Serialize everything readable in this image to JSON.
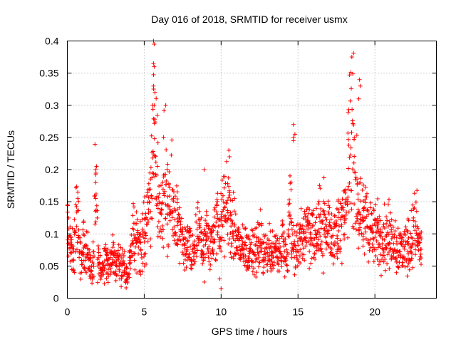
{
  "chart_data": {
    "type": "scatter",
    "title": "Day 016 of 2018, SRMTID for receiver usmx",
    "xlabel": "GPS time / hours",
    "ylabel": "SRMTID / TECUs",
    "xlim": [
      0,
      24.0
    ],
    "ylim": [
      0,
      0.4
    ],
    "xticks": [
      0,
      5,
      10,
      15,
      20
    ],
    "xtick_labels": [
      "0",
      "5",
      "10",
      "15",
      "20"
    ],
    "yticks": [
      0,
      0.05,
      0.1,
      0.15,
      0.2,
      0.25,
      0.3,
      0.35,
      0.4
    ],
    "ytick_labels": [
      "0",
      "0.05",
      "0.1",
      "0.15",
      "0.2",
      "0.25",
      "0.3",
      "0.35",
      "0.4"
    ],
    "grid": true,
    "marker": "+",
    "color": "#ff0000",
    "series": [
      {
        "name": "SRMTID",
        "x_step": 0.1,
        "x_start": 0,
        "values": [
          0.12,
          0.1,
          0.08,
          0.07,
          0.06,
          0.09,
          0.13,
          0.11,
          0.08,
          0.06,
          0.07,
          0.09,
          0.08,
          0.07,
          0.06,
          0.05,
          0.04,
          0.06,
          0.15,
          0.13,
          0.06,
          0.05,
          0.04,
          0.05,
          0.06,
          0.07,
          0.06,
          0.05,
          0.05,
          0.06,
          0.07,
          0.06,
          0.05,
          0.06,
          0.05,
          0.05,
          0.06,
          0.05,
          0.04,
          0.04,
          0.05,
          0.07,
          0.09,
          0.1,
          0.08,
          0.09,
          0.1,
          0.09,
          0.08,
          0.09,
          0.1,
          0.11,
          0.13,
          0.15,
          0.17,
          0.2,
          0.22,
          0.21,
          0.2,
          0.16,
          0.14,
          0.13,
          0.17,
          0.19,
          0.16,
          0.14,
          0.13,
          0.14,
          0.15,
          0.14,
          0.13,
          0.12,
          0.11,
          0.1,
          0.09,
          0.08,
          0.07,
          0.08,
          0.09,
          0.08,
          0.07,
          0.06,
          0.07,
          0.08,
          0.09,
          0.1,
          0.09,
          0.09,
          0.08,
          0.09,
          0.09,
          0.1,
          0.08,
          0.08,
          0.09,
          0.1,
          0.1,
          0.11,
          0.12,
          0.11,
          0.11,
          0.12,
          0.13,
          0.14,
          0.15,
          0.14,
          0.12,
          0.11,
          0.1,
          0.1,
          0.09,
          0.09,
          0.08,
          0.08,
          0.07,
          0.08,
          0.08,
          0.07,
          0.07,
          0.08,
          0.08,
          0.08,
          0.07,
          0.07,
          0.08,
          0.08,
          0.09,
          0.07,
          0.08,
          0.07,
          0.07,
          0.08,
          0.08,
          0.07,
          0.08,
          0.08,
          0.08,
          0.07,
          0.07,
          0.08,
          0.09,
          0.07,
          0.06,
          0.06,
          0.12,
          0.15,
          0.09,
          0.08,
          0.07,
          0.08,
          0.08,
          0.09,
          0.09,
          0.1,
          0.1,
          0.11,
          0.12,
          0.11,
          0.1,
          0.1,
          0.1,
          0.09,
          0.1,
          0.1,
          0.11,
          0.12,
          0.11,
          0.12,
          0.1,
          0.1,
          0.11,
          0.11,
          0.1,
          0.1,
          0.1,
          0.1,
          0.11,
          0.11,
          0.12,
          0.12,
          0.12,
          0.13,
          0.16,
          0.22,
          0.26,
          0.29,
          0.24,
          0.21,
          0.16,
          0.14,
          0.13,
          0.12,
          0.11,
          0.12,
          0.12,
          0.13,
          0.12,
          0.11,
          0.1,
          0.1,
          0.11,
          0.1,
          0.1,
          0.09,
          0.1,
          0.1,
          0.1,
          0.09,
          0.09,
          0.1,
          0.09,
          0.09,
          0.1,
          0.09,
          0.08,
          0.08,
          0.08,
          0.08,
          0.07,
          0.08,
          0.08,
          0.08,
          0.09,
          0.08,
          0.09,
          0.1,
          0.11,
          0.12,
          0.09,
          0.08,
          0.08
        ]
      }
    ],
    "extra_points": [
      {
        "x": 5.6,
        "y": 0.4
      },
      {
        "x": 5.65,
        "y": 0.395
      },
      {
        "x": 5.6,
        "y": 0.365
      },
      {
        "x": 5.65,
        "y": 0.36
      },
      {
        "x": 5.6,
        "y": 0.33
      },
      {
        "x": 5.7,
        "y": 0.32
      },
      {
        "x": 5.55,
        "y": 0.3
      },
      {
        "x": 5.65,
        "y": 0.3
      },
      {
        "x": 6.4,
        "y": 0.3
      },
      {
        "x": 1.9,
        "y": 0.205
      },
      {
        "x": 1.85,
        "y": 0.2
      },
      {
        "x": 14.7,
        "y": 0.27
      },
      {
        "x": 14.8,
        "y": 0.255
      },
      {
        "x": 14.7,
        "y": 0.25
      },
      {
        "x": 14.7,
        "y": 0.245
      },
      {
        "x": 19.0,
        "y": 0.34
      },
      {
        "x": 19.05,
        "y": 0.33
      },
      {
        "x": 18.95,
        "y": 0.31
      },
      {
        "x": 9.9,
        "y": 0.03
      },
      {
        "x": 10.0,
        "y": 0.015
      },
      {
        "x": 8.9,
        "y": 0.025
      },
      {
        "x": 10.5,
        "y": 0.23
      },
      {
        "x": 10.55,
        "y": 0.22
      },
      {
        "x": 8.9,
        "y": 0.2
      }
    ]
  }
}
